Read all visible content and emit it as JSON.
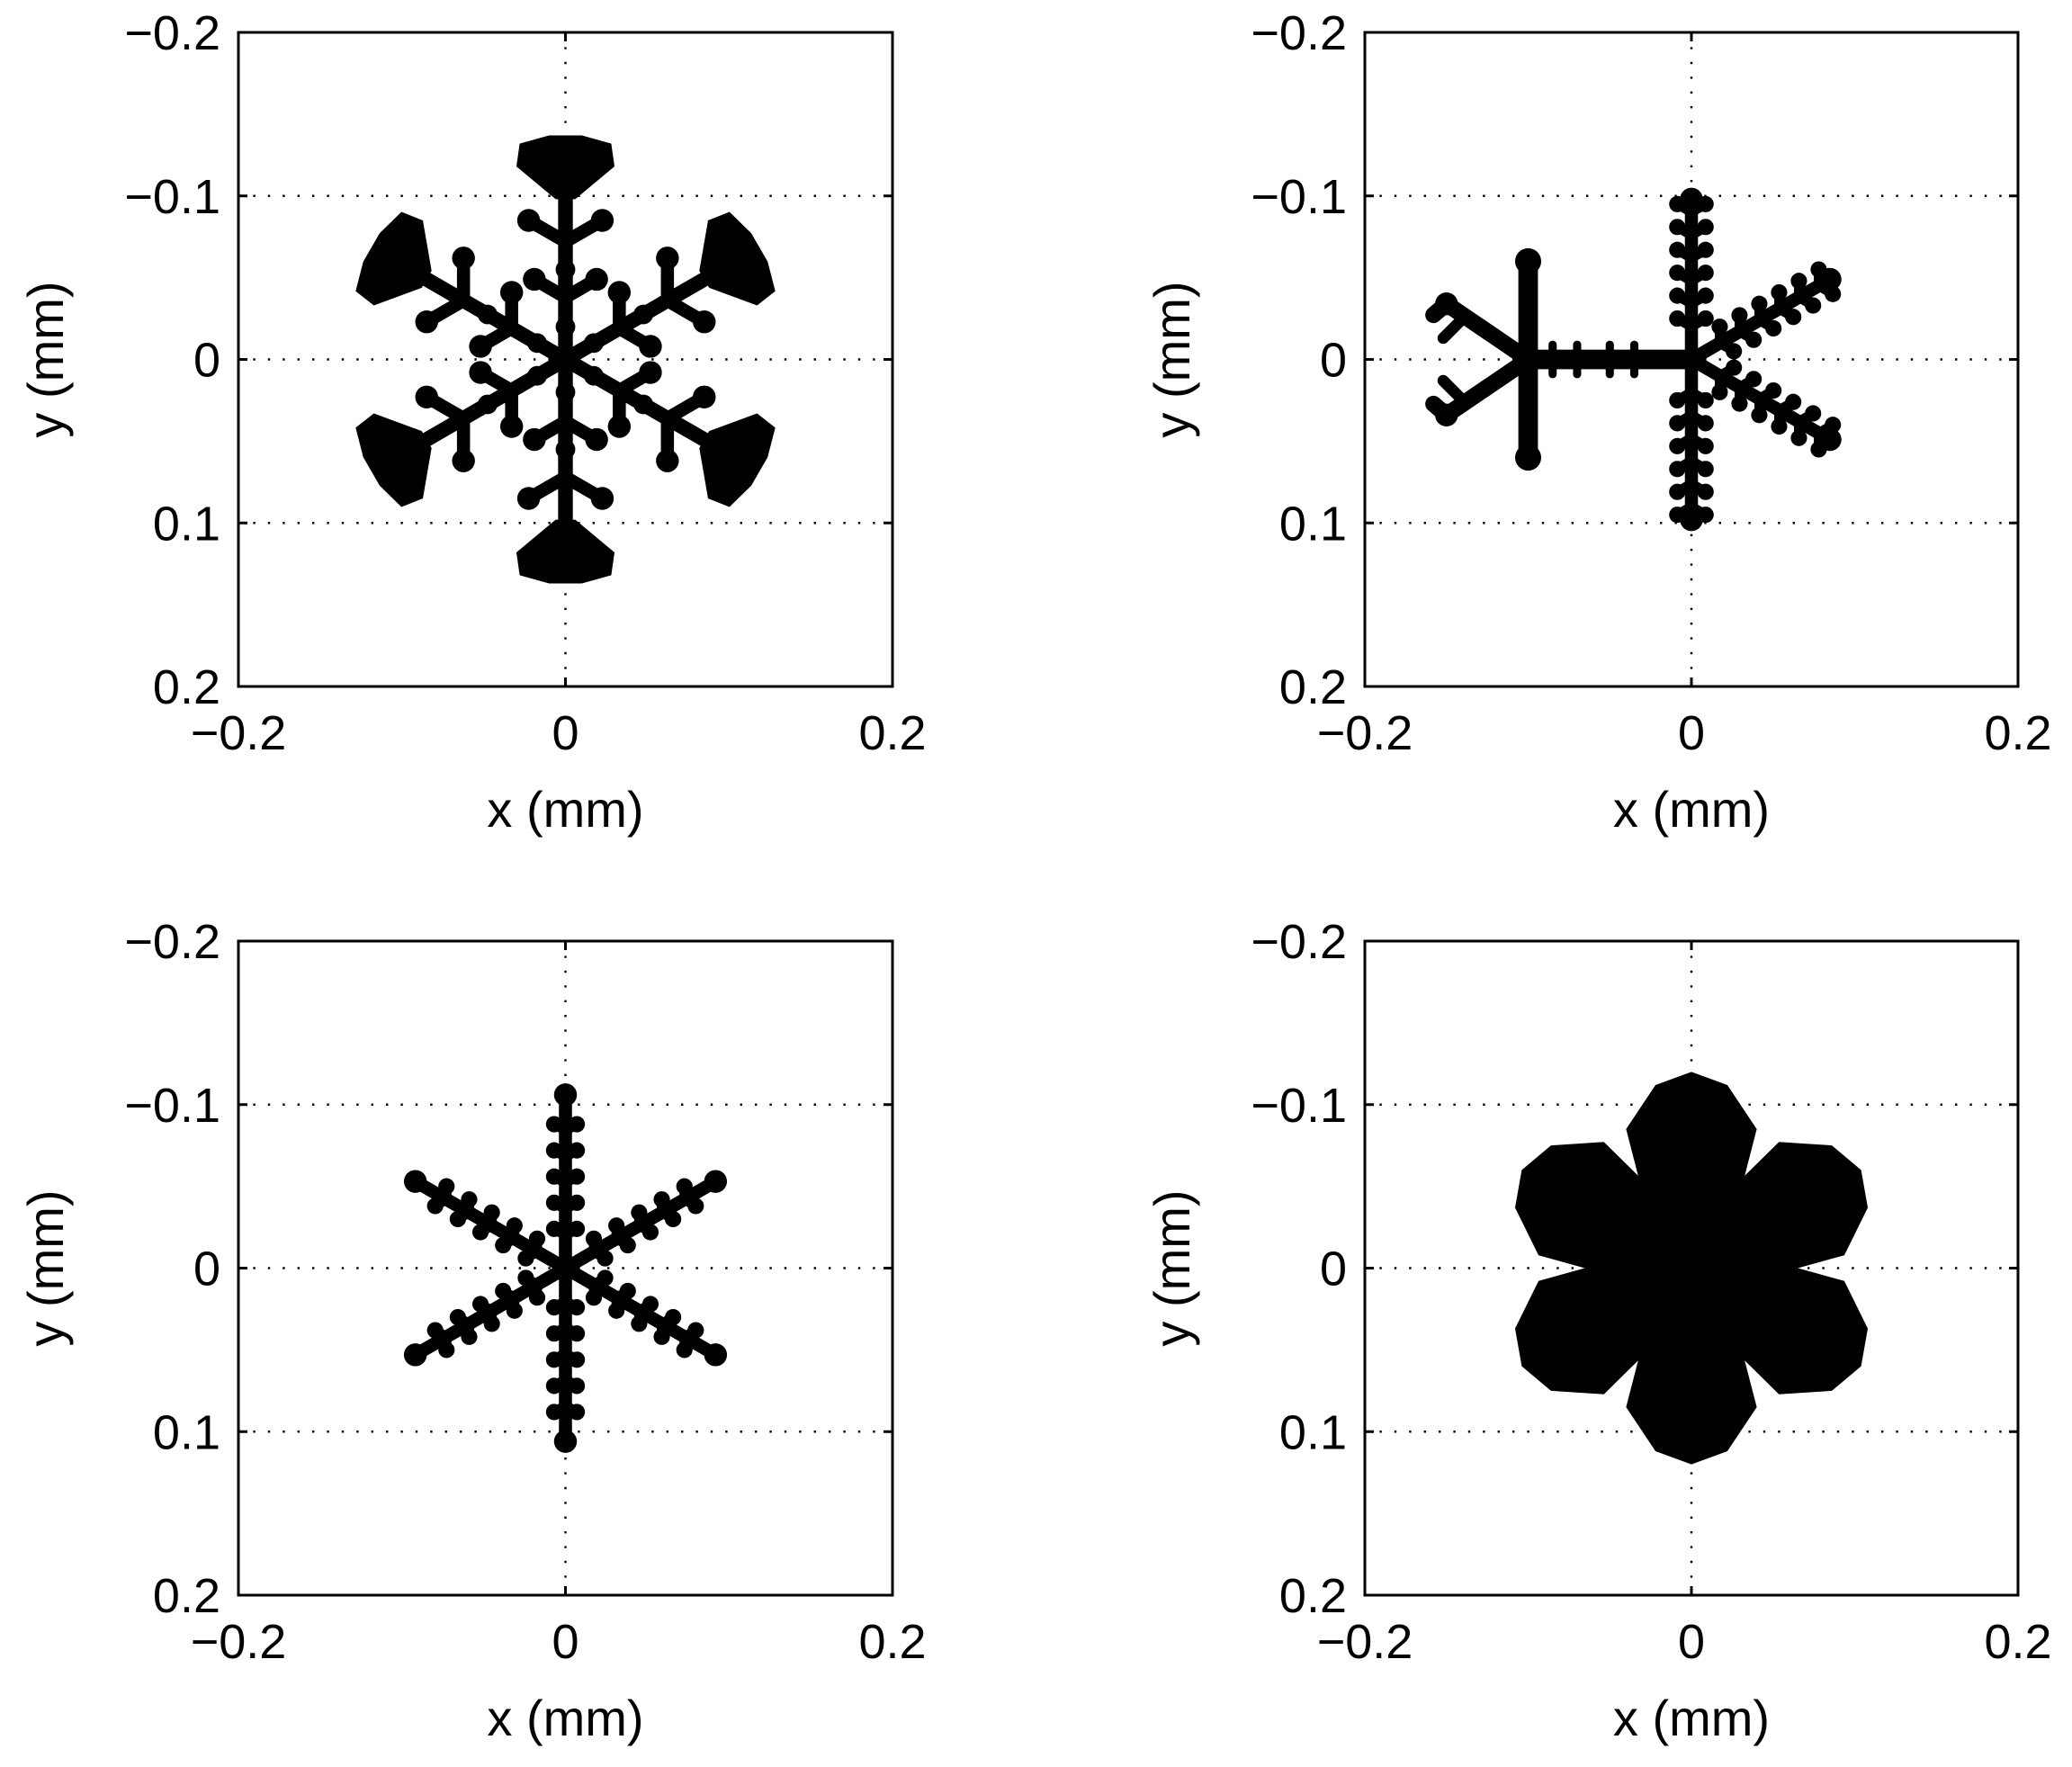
{
  "figure": {
    "layout": "2x2 grid",
    "colors": {
      "axes": "#000000",
      "grid": "#000000",
      "shape": "#000000",
      "background": "#ffffff"
    }
  },
  "chart_data": [
    {
      "type": "scatter",
      "panel": "top-left",
      "shape": "snowflake-plate-dendrite",
      "xlabel": "x (mm)",
      "ylabel": "y (mm)",
      "xlim": [
        -0.2,
        0.2
      ],
      "ylim": [
        -0.2,
        0.2
      ],
      "y_axis_direction": "reversed",
      "xticks": [
        -0.2,
        0,
        0.2
      ],
      "xtick_labels": [
        "−0.2",
        "0",
        "0.2"
      ],
      "yticks": [
        -0.2,
        -0.1,
        0,
        0.1,
        0.2
      ],
      "ytick_labels": [
        "−0.2",
        "−0.1",
        "0",
        "0.1",
        "0.2"
      ],
      "grid": true,
      "grid_style": "dotted",
      "grid_x": [
        0
      ],
      "grid_y": [
        -0.1,
        0,
        0.1
      ],
      "arm_length_mm": 0.135,
      "arms": 6
    },
    {
      "type": "scatter",
      "panel": "top-right",
      "shape": "double-crystal-fernlike",
      "xlabel": "x (mm)",
      "ylabel": "y (mm)",
      "xlim": [
        -0.2,
        0.2
      ],
      "ylim": [
        -0.2,
        0.2
      ],
      "y_axis_direction": "reversed",
      "xticks": [
        -0.2,
        0,
        0.2
      ],
      "xtick_labels": [
        "−0.2",
        "0",
        "0.2"
      ],
      "yticks": [
        -0.2,
        -0.1,
        0,
        0.1,
        0.2
      ],
      "ytick_labels": [
        "−0.2",
        "−0.1",
        "0",
        "0.1",
        "0.2"
      ],
      "grid": true,
      "grid_style": "dotted",
      "grid_x": [
        0
      ],
      "grid_y": [
        -0.1,
        0,
        0.1
      ],
      "centers_mm": [
        [
          0,
          0
        ],
        [
          -0.1,
          0
        ]
      ]
    },
    {
      "type": "scatter",
      "panel": "bottom-left",
      "shape": "thin-stellar-dendrite",
      "xlabel": "x (mm)",
      "ylabel": "y (mm)",
      "xlim": [
        -0.2,
        0.2
      ],
      "ylim": [
        -0.2,
        0.2
      ],
      "y_axis_direction": "reversed",
      "xticks": [
        -0.2,
        0,
        0.2
      ],
      "xtick_labels": [
        "−0.2",
        "0",
        "0.2"
      ],
      "yticks": [
        -0.2,
        -0.1,
        0,
        0.1,
        0.2
      ],
      "ytick_labels": [
        "−0.2",
        "−0.1",
        "0",
        "0.1",
        "0.2"
      ],
      "grid": true,
      "grid_style": "dotted",
      "grid_x": [
        0
      ],
      "grid_y": [
        -0.1,
        0,
        0.1
      ],
      "arm_length_mm": 0.11,
      "arms": 6
    },
    {
      "type": "scatter",
      "panel": "bottom-right",
      "shape": "sectored-plate",
      "xlabel": "x (mm)",
      "ylabel": "y (mm)",
      "xlim": [
        -0.2,
        0.2
      ],
      "ylim": [
        -0.2,
        0.2
      ],
      "y_axis_direction": "reversed",
      "xticks": [
        -0.2,
        0,
        0.2
      ],
      "xtick_labels": [
        "−0.2",
        "0",
        "0.2"
      ],
      "yticks": [
        -0.2,
        -0.1,
        0,
        0.1,
        0.2
      ],
      "ytick_labels": [
        "−0.2",
        "−0.1",
        "0",
        "0.1",
        "0.2"
      ],
      "grid": true,
      "grid_style": "dotted",
      "grid_x": [
        0
      ],
      "grid_y": [
        -0.1,
        0,
        0.1
      ],
      "plate_radius_mm": 0.12,
      "arms": 6
    }
  ]
}
